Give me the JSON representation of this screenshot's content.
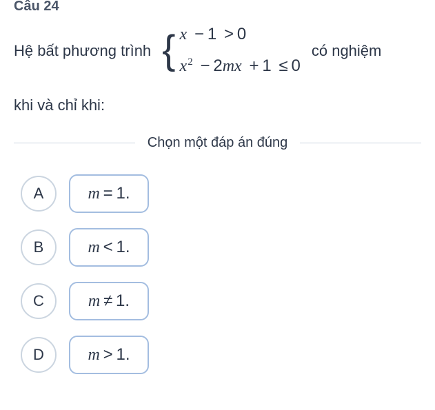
{
  "question": {
    "number_label": "Câu 24",
    "text_before": "Hệ bất phương trình",
    "text_after_row": "có nghiệm",
    "text_line2": "khi và chỉ khi:",
    "system": {
      "line1": {
        "var1": "x",
        "op1": "−",
        "num1": "1",
        "rel": ">",
        "rhs": "0"
      },
      "line2": {
        "var1": "x",
        "exp1": "2",
        "op1": "−",
        "num1": "2",
        "var2": "m",
        "var3": "x",
        "op2": "+",
        "num2": "1",
        "rel": "≤",
        "rhs": "0"
      }
    }
  },
  "instruction": "Chọn một đáp án đúng",
  "options": [
    {
      "letter": "A",
      "math_var": "m",
      "math_rel": "=",
      "math_val": "1",
      "math_suffix": "."
    },
    {
      "letter": "B",
      "math_var": "m",
      "math_rel": "<",
      "math_val": "1",
      "math_suffix": "."
    },
    {
      "letter": "C",
      "math_var": "m",
      "math_rel": "≠",
      "math_val": "1",
      "math_suffix": "."
    },
    {
      "letter": "D",
      "math_var": "m",
      "math_rel": ">",
      "math_val": "1",
      "math_suffix": "."
    }
  ],
  "colors": {
    "text": "#2d3748",
    "muted": "#4a5568",
    "circle_border": "#cbd5e0",
    "box_border": "#a3bde0",
    "divider": "#cbd5e0",
    "background": "#ffffff"
  }
}
